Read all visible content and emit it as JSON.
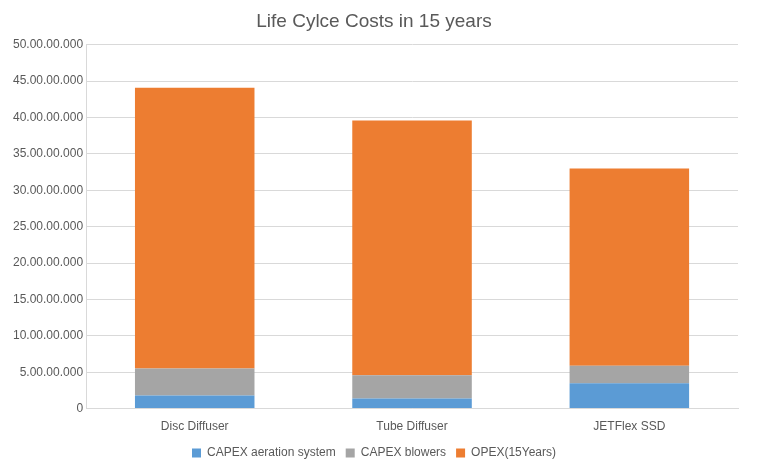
{
  "chart_data": {
    "type": "bar",
    "title": "Life Cylce Costs in 15 years",
    "categories": [
      "Disc Diffuser",
      "Tube Diffuser",
      "JETFlex SSD"
    ],
    "series": [
      {
        "name": "CAPEX aeration system",
        "color": "#5b9bd5",
        "values": [
          18000000,
          14000000,
          35000000
        ]
      },
      {
        "name": "CAPEX blowers",
        "color": "#a5a5a5",
        "values": [
          37000000,
          32000000,
          24000000
        ]
      },
      {
        "name": "OPEX(15Years)",
        "color": "#ed7d31",
        "values": [
          386000000,
          350000000,
          271000000
        ]
      }
    ],
    "ylim": [
      0,
      500000000
    ],
    "yticks": [
      0,
      {
        "value": 50000000,
        "label": "5.00.00.000"
      },
      {
        "value": 100000000,
        "label": "10.00.00.000"
      },
      {
        "value": 150000000,
        "label": "15.00.00.000"
      },
      {
        "value": 200000000,
        "label": "20.00.00.000"
      },
      {
        "value": 250000000,
        "label": "25.00.00.000"
      },
      {
        "value": 300000000,
        "label": "30.00.00.000"
      },
      {
        "value": 350000000,
        "label": "35.00.00.000"
      },
      {
        "value": 400000000,
        "label": "40.00.00.000"
      },
      {
        "value": 450000000,
        "label": "45.00.00.000"
      },
      {
        "value": 500000000,
        "label": "50.00.00.000"
      }
    ],
    "stacked": true,
    "grid": true,
    "legend": "bottom"
  }
}
